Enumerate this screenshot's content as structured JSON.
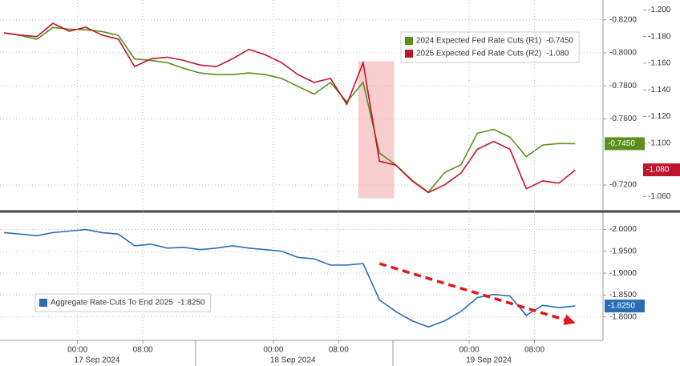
{
  "chart_data": [
    {
      "type": "line",
      "x": [
        -9,
        -7,
        -5,
        -3,
        -1,
        1,
        3,
        5,
        7,
        9,
        11,
        13,
        15,
        17,
        19,
        21,
        23,
        25,
        27,
        29,
        31,
        33,
        35,
        37,
        39,
        41,
        43,
        45,
        47,
        49,
        51,
        53,
        55,
        57,
        59,
        61
      ],
      "xlim": [
        -9.5,
        64.4
      ],
      "ylim": [
        -0.705,
        -0.83
      ],
      "yticks": [
        {
          "value": -0.82,
          "label": "-0.8200"
        },
        {
          "value": -0.8,
          "label": "-0.8000"
        },
        {
          "value": -0.78,
          "label": "-0.7800"
        },
        {
          "value": -0.76,
          "label": "-0.7600"
        },
        {
          "value": -0.72,
          "label": "-0.7200"
        }
      ],
      "y2lim": [
        -1.05,
        -1.205
      ],
      "y2ticks": [
        {
          "value": -1.2,
          "label": "-1.200"
        },
        {
          "value": -1.18,
          "label": "-1.180"
        },
        {
          "value": -1.16,
          "label": "-1.160"
        },
        {
          "value": -1.14,
          "label": "-1.140"
        },
        {
          "value": -1.12,
          "label": "-1.120"
        },
        {
          "value": -1.1,
          "label": "-1.100"
        },
        {
          "value": -1.06,
          "label": "-1.060"
        }
      ],
      "grid": true,
      "legend": "upper right",
      "series": [
        {
          "name": "2024 Expected Fed Rate Cuts (R1)",
          "color": "#5a8f1e",
          "last_label": "-0.7450",
          "values": [
            -0.812,
            -0.8105,
            -0.8082,
            -0.8153,
            -0.8143,
            -0.8139,
            -0.8129,
            -0.8105,
            -0.7963,
            -0.7954,
            -0.794,
            -0.7906,
            -0.7878,
            -0.7868,
            -0.7868,
            -0.7878,
            -0.7868,
            -0.7845,
            -0.7797,
            -0.775,
            -0.7821,
            -0.7703,
            -0.7821,
            -0.7394,
            -0.7323,
            -0.7229,
            -0.7157,
            -0.7276,
            -0.7323,
            -0.7513,
            -0.7537,
            -0.7489,
            -0.7371,
            -0.7442,
            -0.7451,
            -0.745
          ]
        },
        {
          "name": "2025 Expected Fed Rate Cuts (R2)",
          "color": "#c0142d",
          "axis": "y2",
          "last_label": "-1.080",
          "values": [
            -1.1828,
            -1.1811,
            -1.1799,
            -1.1899,
            -1.184,
            -1.187,
            -1.1811,
            -1.1781,
            -1.1574,
            -1.1633,
            -1.1645,
            -1.1621,
            -1.1586,
            -1.1574,
            -1.1633,
            -1.1704,
            -1.1663,
            -1.1604,
            -1.1515,
            -1.1456,
            -1.1486,
            -1.1291,
            -1.1604,
            -1.0865,
            -1.0835,
            -1.0717,
            -1.0629,
            -1.0688,
            -1.0776,
            -1.0954,
            -1.1013,
            -1.0954,
            -1.0658,
            -1.0717,
            -1.07,
            -1.08
          ]
        }
      ],
      "highlight": {
        "x": [
          34.4,
          38.8
        ],
        "y": [
          -0.7949,
          -0.712
        ],
        "color": "#f5c0c2"
      }
    },
    {
      "type": "line",
      "x": [
        -9,
        -7,
        -5,
        -3,
        -1,
        1,
        3,
        5,
        7,
        9,
        11,
        13,
        15,
        17,
        19,
        21,
        23,
        25,
        27,
        29,
        31,
        33,
        35,
        37,
        39,
        41,
        43,
        45,
        47,
        49,
        51,
        53,
        55,
        57,
        59,
        61
      ],
      "xlim": [
        -9.5,
        64.4
      ],
      "ylim": [
        -1.75,
        -2.034
      ],
      "yticks": [
        {
          "value": -2,
          "label": "-2.0000"
        },
        {
          "value": -1.95,
          "label": "-1.9500"
        },
        {
          "value": -1.9,
          "label": "-1.9000"
        },
        {
          "value": -1.85,
          "label": "-1.8500"
        },
        {
          "value": -1.8,
          "label": "-1.8000"
        }
      ],
      "xticks": [
        {
          "value": 0,
          "label": "00:00"
        },
        {
          "value": 8,
          "label": "08:00"
        },
        {
          "value": 24,
          "label": "00:00"
        },
        {
          "value": 32,
          "label": "08:00"
        },
        {
          "value": 48,
          "label": "00:00"
        },
        {
          "value": 56,
          "label": "08:00"
        }
      ],
      "day_labels": [
        {
          "value": 0,
          "label": "17 Sep 2024"
        },
        {
          "value": 24,
          "label": "18 Sep 2024"
        },
        {
          "value": 48,
          "label": "19 Sep 2024"
        }
      ],
      "grid": true,
      "legend": "lower left",
      "series": [
        {
          "name": "Aggregate Rate-Cuts To End 2025",
          "color": "#2a6db5",
          "last_label": "-1.8250",
          "values": [
            -1.9929,
            -1.9894,
            -1.9858,
            -1.9929,
            -1.9965,
            -2.0,
            -1.9929,
            -1.9894,
            -1.9628,
            -1.9664,
            -1.9575,
            -1.9593,
            -1.954,
            -1.9575,
            -1.9628,
            -1.9575,
            -1.954,
            -1.9504,
            -1.9363,
            -1.9327,
            -1.9186,
            -1.9186,
            -1.9221,
            -1.8389,
            -1.8124,
            -1.7911,
            -1.777,
            -1.7911,
            -1.8124,
            -1.8442,
            -1.8513,
            -1.8478,
            -1.8035,
            -1.8265,
            -1.8212,
            -1.825
          ]
        }
      ],
      "arrow": {
        "x": [
          37,
          60.5
        ],
        "y": [
          -1.922,
          -1.789
        ],
        "color": "#e8141c"
      }
    }
  ]
}
